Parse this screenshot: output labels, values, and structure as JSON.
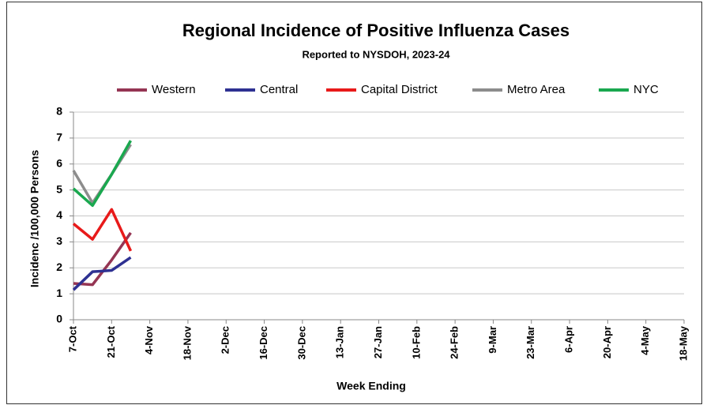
{
  "chart_data": {
    "type": "line",
    "title": "Regional Incidence of Positive Influenza Cases",
    "subtitle": "Reported to NYSDOH, 2023-24",
    "x_label": "Week Ending",
    "y_label": "Incidenc /100,000 Persons",
    "categories": [
      "7-Oct",
      null,
      "21-Oct",
      null,
      "4-Nov",
      null,
      "18-Nov",
      null,
      "2-Dec",
      null,
      "16-Dec",
      null,
      "30-Dec",
      null,
      "13-Jan",
      null,
      "27-Jan",
      null,
      "10-Feb",
      null,
      "24-Feb",
      null,
      "9-Mar",
      null,
      "23-Mar",
      null,
      "6-Apr",
      null,
      "20-Apr",
      null,
      "4-May",
      null,
      "18-May"
    ],
    "series": [
      {
        "name": "Western",
        "color": "#953553",
        "values": [
          1.4,
          1.35,
          2.3,
          3.35,
          null,
          null,
          null,
          null,
          null,
          null,
          null,
          null,
          null,
          null,
          null,
          null,
          null,
          null,
          null,
          null,
          null,
          null,
          null,
          null,
          null,
          null,
          null,
          null,
          null,
          null,
          null,
          null,
          null
        ]
      },
      {
        "name": "Central",
        "color": "#2e3192",
        "values": [
          1.15,
          1.85,
          1.9,
          2.4,
          null,
          null,
          null,
          null,
          null,
          null,
          null,
          null,
          null,
          null,
          null,
          null,
          null,
          null,
          null,
          null,
          null,
          null,
          null,
          null,
          null,
          null,
          null,
          null,
          null,
          null,
          null,
          null,
          null
        ]
      },
      {
        "name": "Capital District",
        "color": "#e81a1a",
        "values": [
          3.7,
          3.1,
          4.25,
          2.65,
          null,
          null,
          null,
          null,
          null,
          null,
          null,
          null,
          null,
          null,
          null,
          null,
          null,
          null,
          null,
          null,
          null,
          null,
          null,
          null,
          null,
          null,
          null,
          null,
          null,
          null,
          null,
          null,
          null
        ]
      },
      {
        "name": "Metro Area",
        "color": "#8c8c8c",
        "values": [
          5.75,
          4.5,
          5.6,
          6.75,
          null,
          null,
          null,
          null,
          null,
          null,
          null,
          null,
          null,
          null,
          null,
          null,
          null,
          null,
          null,
          null,
          null,
          null,
          null,
          null,
          null,
          null,
          null,
          null,
          null,
          null,
          null,
          null,
          null
        ]
      },
      {
        "name": "NYC",
        "color": "#1aa84f",
        "values": [
          5.05,
          4.4,
          5.6,
          6.9,
          null,
          null,
          null,
          null,
          null,
          null,
          null,
          null,
          null,
          null,
          null,
          null,
          null,
          null,
          null,
          null,
          null,
          null,
          null,
          null,
          null,
          null,
          null,
          null,
          null,
          null,
          null,
          null,
          null
        ]
      }
    ],
    "ylim": [
      0,
      8
    ],
    "yticks": [
      0,
      1,
      2,
      3,
      4,
      5,
      6,
      7,
      8
    ],
    "grid": true
  }
}
